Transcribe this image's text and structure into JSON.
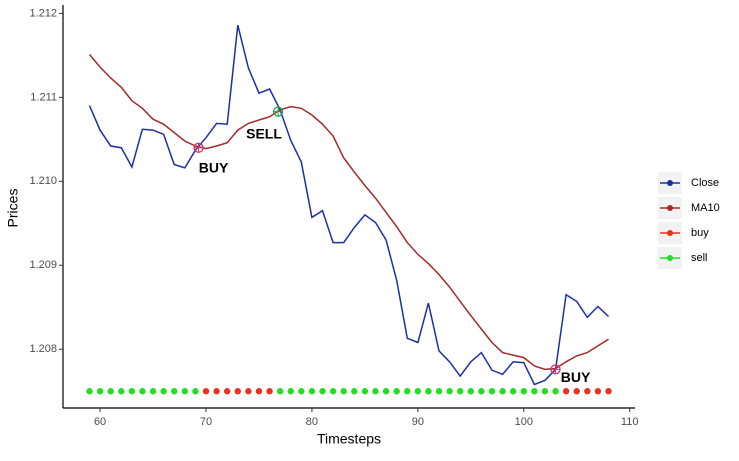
{
  "chart_data": {
    "type": "line",
    "x_label": "Timesteps",
    "y_label": "Prices",
    "x": [
      59,
      60,
      61,
      62,
      63,
      64,
      65,
      66,
      67,
      68,
      69,
      70,
      71,
      72,
      73,
      74,
      75,
      76,
      77,
      78,
      79,
      80,
      81,
      82,
      83,
      84,
      85,
      86,
      87,
      88,
      89,
      90,
      91,
      92,
      93,
      94,
      95,
      96,
      97,
      98,
      99,
      100,
      101,
      102,
      103,
      104,
      105,
      106,
      107,
      108
    ],
    "series": [
      {
        "name": "Close",
        "color": "#1f2fa3",
        "mark": "line",
        "values": [
          1.2109,
          1.21061,
          1.21042,
          1.2104,
          1.21017,
          1.21062,
          1.21061,
          1.21056,
          1.2102,
          1.21016,
          1.21037,
          1.21052,
          1.21069,
          1.21068,
          1.21186,
          1.21135,
          1.21105,
          1.2111,
          1.21085,
          1.21049,
          1.21023,
          1.20957,
          1.20965,
          1.20927,
          1.20927,
          1.20945,
          1.2096,
          1.20951,
          1.2093,
          1.20882,
          1.20813,
          1.20808,
          1.20855,
          1.20798,
          1.20785,
          1.20768,
          1.20785,
          1.20796,
          1.20775,
          1.2077,
          1.20785,
          1.20784,
          1.20758,
          1.20763,
          1.20776,
          1.20865,
          1.20857,
          1.20838,
          1.20851,
          1.20839
        ]
      },
      {
        "name": "MA10",
        "color": "#a52a2a",
        "mark": "line",
        "values": [
          1.21151,
          1.21136,
          1.21123,
          1.21112,
          1.21096,
          1.21087,
          1.21074,
          1.21068,
          1.21058,
          1.21048,
          1.21042,
          1.21039,
          1.21042,
          1.21046,
          1.21061,
          1.21069,
          1.21073,
          1.21077,
          1.21085,
          1.21089,
          1.21087,
          1.21079,
          1.21068,
          1.21054,
          1.21028,
          1.21011,
          1.20995,
          1.2098,
          1.20963,
          1.20946,
          1.20927,
          1.20913,
          1.20902,
          1.20889,
          1.20874,
          1.20857,
          1.2084,
          1.20824,
          1.20808,
          1.20796,
          1.20793,
          1.2079,
          1.2078,
          1.20776,
          1.20777,
          1.20785,
          1.20792,
          1.20796,
          1.20804,
          1.20812
        ]
      },
      {
        "name": "buy",
        "color": "#e8321a",
        "mark": "point",
        "values": [
          null,
          null,
          null,
          null,
          null,
          null,
          null,
          null,
          null,
          null,
          null,
          1.2075,
          1.2075,
          1.2075,
          1.2075,
          1.2075,
          1.2075,
          1.2075,
          null,
          null,
          null,
          null,
          null,
          null,
          null,
          null,
          null,
          null,
          null,
          null,
          null,
          null,
          null,
          null,
          null,
          null,
          null,
          null,
          null,
          null,
          null,
          null,
          null,
          null,
          null,
          1.2075,
          1.2075,
          1.2075,
          1.2075,
          1.2075
        ]
      },
      {
        "name": "sell",
        "color": "#22dd22",
        "mark": "point",
        "values": [
          1.2075,
          1.2075,
          1.2075,
          1.2075,
          1.2075,
          1.2075,
          1.2075,
          1.2075,
          1.2075,
          1.2075,
          1.2075,
          null,
          null,
          null,
          null,
          null,
          null,
          null,
          1.2075,
          1.2075,
          1.2075,
          1.2075,
          1.2075,
          1.2075,
          1.2075,
          1.2075,
          1.2075,
          1.2075,
          1.2075,
          1.2075,
          1.2075,
          1.2075,
          1.2075,
          1.2075,
          1.2075,
          1.2075,
          1.2075,
          1.2075,
          1.2075,
          1.2075,
          1.2075,
          1.2075,
          1.2075,
          1.2075,
          1.2075,
          null,
          null,
          null,
          null,
          null
        ]
      }
    ],
    "annotations": [
      {
        "text": "BUY",
        "x": 69.3,
        "y": 1.2104,
        "color": "#d0306a"
      },
      {
        "text": "SELL",
        "x": 76.8,
        "y": 1.21083,
        "color": "#20a050"
      },
      {
        "text": "BUY",
        "x": 103,
        "y": 1.20776,
        "color": "#d0306a"
      }
    ],
    "xlim": [
      56.5,
      110.5
    ],
    "ylim": [
      1.2073,
      1.2121
    ],
    "xticks": [
      60,
      70,
      80,
      90,
      100,
      110
    ],
    "yticks": [
      1.208,
      1.209,
      {
        "value": 1.21,
        "label": "1.210"
      },
      1.211,
      1.212
    ],
    "grid": false,
    "legend": "right"
  }
}
